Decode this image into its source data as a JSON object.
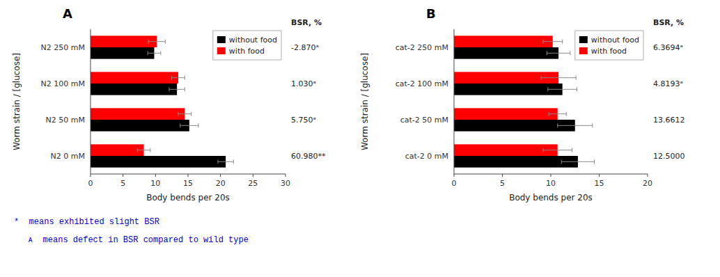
{
  "chart_data": [
    {
      "type": "bar",
      "orientation": "horizontal",
      "title": "A",
      "categories": [
        "N2 250 mM",
        "N2 100 mM",
        "N2 50 mM",
        "N2 0 mM"
      ],
      "series": [
        {
          "name": "without food",
          "color": "black",
          "values": [
            9.8,
            13.3,
            15.2,
            20.8
          ],
          "errors": [
            1.0,
            1.2,
            1.4,
            1.2
          ]
        },
        {
          "name": "with food",
          "color": "red",
          "values": [
            10.2,
            13.5,
            14.5,
            8.2
          ],
          "errors": [
            1.3,
            1.0,
            1.0,
            1.0
          ]
        }
      ],
      "side_labels_title": "BSR, %",
      "side_labels": [
        "-2.870ᵃ",
        "1.030ᵃ",
        "5.750ᵃ",
        "60.980**"
      ],
      "xlim": [
        0,
        30
      ],
      "xticks": [
        0,
        5,
        10,
        15,
        20,
        25,
        30
      ],
      "x_label": "Body bends per 20s",
      "y_label": "Worm strain / [glucose]",
      "legend": "upper right",
      "grid": false
    },
    {
      "type": "bar",
      "orientation": "horizontal",
      "title": "B",
      "categories": [
        "cat-2 250 mM",
        "cat-2 100 mM",
        "cat-2 50 mM",
        "cat-2 0 mM"
      ],
      "series": [
        {
          "name": "without food",
          "color": "black",
          "values": [
            10.8,
            11.2,
            12.5,
            12.8
          ],
          "errors": [
            1.2,
            1.5,
            1.8,
            1.7
          ]
        },
        {
          "name": "with food",
          "color": "red",
          "values": [
            10.2,
            10.8,
            10.7,
            10.7
          ],
          "errors": [
            1.0,
            1.8,
            0.9,
            1.5
          ]
        }
      ],
      "side_labels_title": "BSR, %",
      "side_labels": [
        "6.3694ᵃ",
        "4.8193ᵃ",
        "13.6612",
        "12.5000"
      ],
      "xlim": [
        0,
        20
      ],
      "xticks": [
        0,
        5,
        10,
        15,
        20
      ],
      "x_label": "Body bends per 20s",
      "y_label": "Worm strain / [glucose]",
      "legend": "upper right",
      "grid": false
    }
  ],
  "footnotes": [
    "*  means exhibited slight BSR",
    "ᴀ  means defect in BSR compared to wild type"
  ],
  "footnote_color": "#0000cc"
}
